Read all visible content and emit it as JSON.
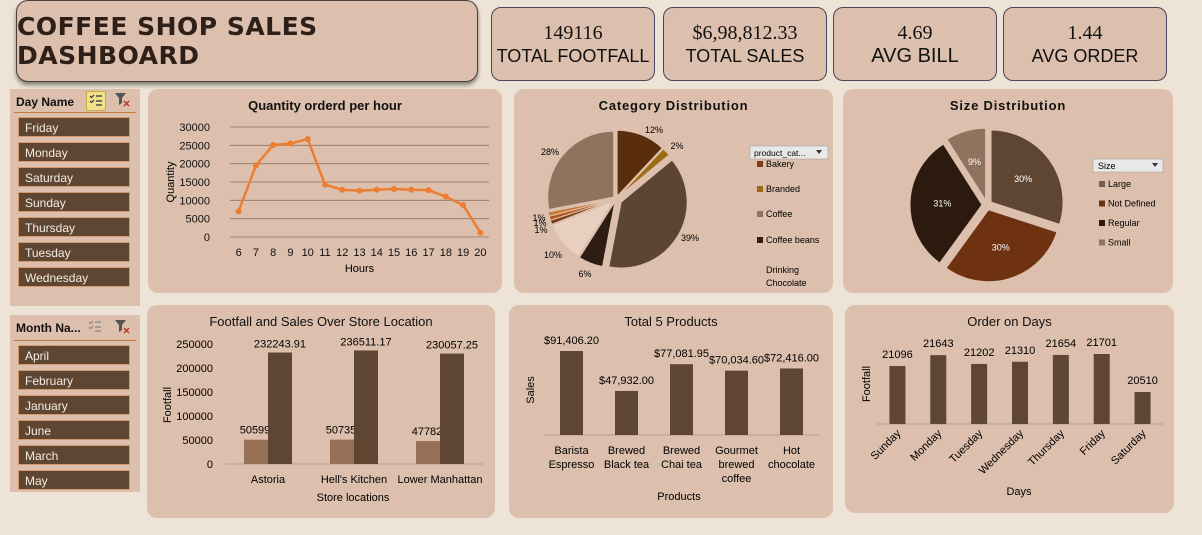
{
  "dashboard": {
    "title": "COFFEE SHOP SALES DASHBOARD"
  },
  "kpis": [
    {
      "value": "149116",
      "label": "TOTAL FOOTFALL"
    },
    {
      "value": "$6,98,812.33",
      "label": "TOTAL SALES"
    },
    {
      "value": "4.69",
      "label": "AVG BILL"
    },
    {
      "value": "1.44",
      "label": "AVG ORDER"
    }
  ],
  "slicers": {
    "day": {
      "label": "Day Name",
      "items": [
        "Friday",
        "Monday",
        "Saturday",
        "Sunday",
        "Thursday",
        "Tuesday",
        "Wednesday"
      ]
    },
    "month": {
      "label": "Month Na...",
      "items": [
        "April",
        "February",
        "January",
        "June",
        "March",
        "May"
      ]
    }
  },
  "colors": {
    "background": "#ede3d6",
    "panel": "#dcbfac",
    "dark_brown": "#5f4632",
    "light_brown": "#977058",
    "line_orange": "#ed7d31"
  },
  "icons": {
    "multi_select": "checklist-icon",
    "clear_filter": "clear-filter-icon"
  },
  "chart_data": [
    {
      "type": "line",
      "title": "Quantity orderd per hour",
      "xlabel": "Hours",
      "ylabel": "Quantity",
      "x": [
        6,
        7,
        8,
        9,
        10,
        11,
        12,
        13,
        14,
        15,
        16,
        17,
        18,
        19,
        20
      ],
      "values": [
        7000,
        19500,
        25100,
        25500,
        26700,
        14300,
        12900,
        12600,
        12900,
        13100,
        12900,
        12800,
        11000,
        8700,
        1200
      ],
      "ylim": [
        0,
        30000
      ],
      "yticks": [
        0,
        5000,
        10000,
        15000,
        20000,
        25000,
        30000
      ],
      "grid": true
    },
    {
      "type": "pie",
      "title": "Category Distribution",
      "legend_header": "product_cat...",
      "legend": [
        "Bakery",
        "Branded",
        "Coffee",
        "Coffee beans",
        "Drinking Chocolate"
      ],
      "labels": [
        "12%",
        "2%",
        "39%",
        "6%",
        "10%",
        "1%",
        "1%",
        "1%",
        "28%"
      ],
      "values": [
        12,
        2,
        39,
        6,
        10,
        1,
        1,
        1,
        28
      ]
    },
    {
      "type": "pie",
      "title": "Size Distribution",
      "legend_header": "Size",
      "legend": [
        "Large",
        "Not Defined",
        "Regular",
        "Small"
      ],
      "labels": [
        "30%",
        "30%",
        "31%",
        "9%"
      ],
      "values": [
        30,
        30,
        31,
        9
      ]
    },
    {
      "type": "bar",
      "title": "Footfall and Sales Over Store Location",
      "xlabel": "Store locations",
      "ylabel": "Footfall",
      "categories": [
        "Astoria",
        "Hell's Kitchen",
        "Lower Manhattan"
      ],
      "series": [
        {
          "values": [
            50599,
            50735,
            47782
          ],
          "labels": [
            "50599",
            "50735",
            "47782"
          ]
        },
        {
          "values": [
            232243.91,
            236511.17,
            230057.25
          ],
          "labels": [
            "232243.91",
            "236511.17",
            "230057.25"
          ]
        }
      ],
      "ylim": [
        0,
        250000
      ],
      "yticks": [
        0,
        50000,
        100000,
        150000,
        200000,
        250000
      ]
    },
    {
      "type": "bar",
      "title": "Total 5 Products",
      "xlabel": "Products",
      "ylabel": "Sales",
      "categories": [
        [
          "Barista",
          "Espresso"
        ],
        [
          "Brewed",
          "Black tea"
        ],
        [
          "Brewed",
          "Chai tea"
        ],
        [
          "Gourmet",
          "brewed",
          "coffee"
        ],
        [
          "Hot",
          "chocolate"
        ]
      ],
      "values": [
        91406.2,
        47932.0,
        77081.95,
        70034.6,
        72416.0
      ],
      "labels": [
        "$91,406.20",
        "$47,932.00",
        "$77,081.95",
        "$70,034.60",
        "$72,416.00"
      ]
    },
    {
      "type": "bar",
      "title": "Order on Days",
      "xlabel": "Days",
      "ylabel": "Footfall",
      "categories": [
        "Sunday",
        "Monday",
        "Tuesday",
        "Wednesday",
        "Thursday",
        "Friday",
        "Saturday"
      ],
      "values": [
        21096,
        21643,
        21202,
        21310,
        21654,
        21701,
        20510
      ],
      "labels": [
        "21096",
        "21643",
        "21202",
        "21310",
        "21654",
        "21701",
        "20510"
      ]
    }
  ]
}
